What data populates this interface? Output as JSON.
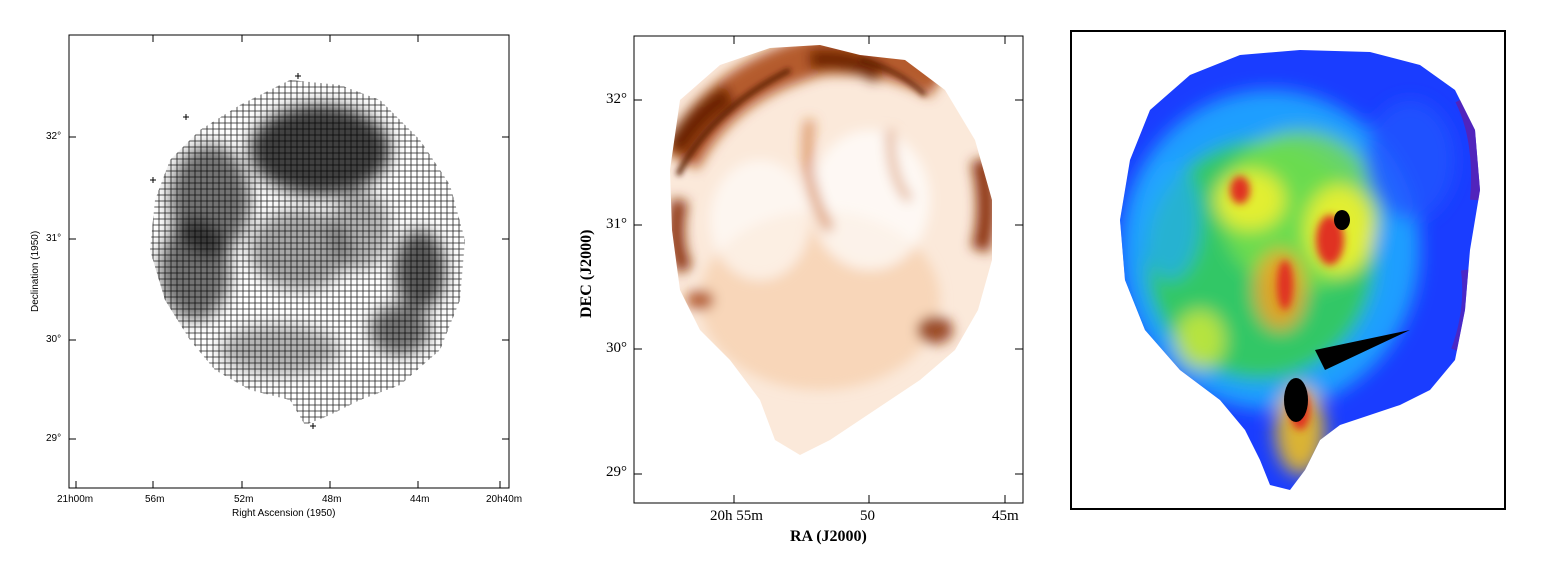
{
  "panels": {
    "left": {
      "xlabel": "Right Ascension (1950)",
      "ylabel": "Declination (1950)",
      "x_ticks": [
        "21h00m",
        "56m",
        "52m",
        "48m",
        "44m",
        "20h40m"
      ],
      "y_ticks": [
        "32°",
        "31°",
        "30°",
        "29°"
      ],
      "style": "grayscale crosshatch grid map"
    },
    "middle": {
      "xlabel": "RA (J2000)",
      "ylabel": "DEC (J2000)",
      "x_ticks": [
        "20h 55m",
        "50",
        "45m"
      ],
      "y_ticks": [
        "32°",
        "31°",
        "30°",
        "29°"
      ],
      "colormap": "white-to-dark-orange"
    },
    "right": {
      "colormap": "jet (blue-green-yellow-red)",
      "framed": true
    }
  },
  "colors": {
    "orange_dark": "#7a2a05",
    "orange_mid": "#c8611d",
    "orange_light": "#f4c7a0",
    "jet_blue": "#1a3dff",
    "jet_green": "#33cc55",
    "jet_yellow": "#f0f030",
    "jet_red": "#e03020"
  }
}
